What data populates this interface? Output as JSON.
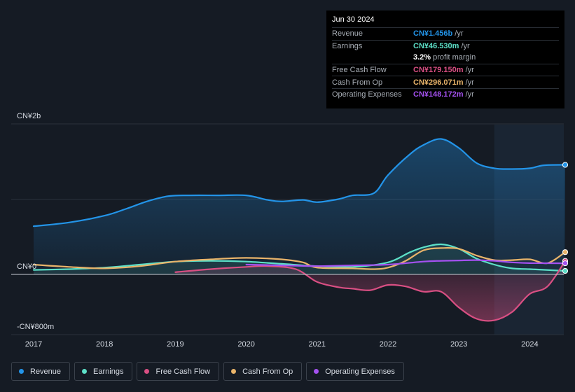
{
  "tooltip": {
    "date": "Jun 30 2024",
    "rows": [
      {
        "label": "Revenue",
        "value": "CN¥1.456b",
        "unit": "/yr",
        "color": "#2394e8"
      },
      {
        "label": "Earnings",
        "value": "CN¥46.530m",
        "unit": "/yr",
        "color": "#5de0c8"
      },
      {
        "label": "",
        "value": "3.2%",
        "unit": "profit margin",
        "color": "#ffffff"
      },
      {
        "label": "Free Cash Flow",
        "value": "CN¥179.150m",
        "unit": "/yr",
        "color": "#d94f83"
      },
      {
        "label": "Cash From Op",
        "value": "CN¥296.071m",
        "unit": "/yr",
        "color": "#e9b46a"
      },
      {
        "label": "Operating Expenses",
        "value": "CN¥148.172m",
        "unit": "/yr",
        "color": "#a451f0"
      }
    ]
  },
  "legend": [
    {
      "label": "Revenue",
      "color": "#2394e8"
    },
    {
      "label": "Earnings",
      "color": "#5de0c8"
    },
    {
      "label": "Free Cash Flow",
      "color": "#d94f83"
    },
    {
      "label": "Cash From Op",
      "color": "#e9b46a"
    },
    {
      "label": "Operating Expenses",
      "color": "#a451f0"
    }
  ],
  "chart_data": {
    "type": "area",
    "title": "",
    "xlabel": "",
    "ylabel": "",
    "unit": "CN¥m",
    "ylim": [
      -800,
      2000
    ],
    "y_tick_labels": [
      {
        "value": 2000,
        "label": "CN¥2b"
      },
      {
        "value": 0,
        "label": "CN¥0"
      },
      {
        "value": -800,
        "label": "-CN¥800m"
      }
    ],
    "x_ticks": [
      {
        "value": 2017,
        "label": "2017"
      },
      {
        "value": 2018,
        "label": "2018"
      },
      {
        "value": 2019,
        "label": "2019"
      },
      {
        "value": 2020,
        "label": "2020"
      },
      {
        "value": 2021,
        "label": "2021"
      },
      {
        "value": 2022,
        "label": "2022"
      },
      {
        "value": 2023,
        "label": "2023"
      },
      {
        "value": 2024,
        "label": "2024"
      }
    ],
    "xlim": [
      2016.7,
      2024.5
    ],
    "highlight_from": 2023.5,
    "series": [
      {
        "name": "Revenue",
        "color": "#2394e8",
        "fill": true,
        "points": [
          [
            2017.0,
            640
          ],
          [
            2017.5,
            690
          ],
          [
            2018.0,
            780
          ],
          [
            2018.3,
            870
          ],
          [
            2018.6,
            970
          ],
          [
            2018.9,
            1040
          ],
          [
            2019.2,
            1050
          ],
          [
            2019.6,
            1050
          ],
          [
            2020.0,
            1050
          ],
          [
            2020.3,
            990
          ],
          [
            2020.5,
            970
          ],
          [
            2020.8,
            990
          ],
          [
            2021.0,
            960
          ],
          [
            2021.3,
            1000
          ],
          [
            2021.5,
            1050
          ],
          [
            2021.8,
            1080
          ],
          [
            2022.0,
            1320
          ],
          [
            2022.3,
            1590
          ],
          [
            2022.5,
            1720
          ],
          [
            2022.75,
            1800
          ],
          [
            2023.0,
            1680
          ],
          [
            2023.25,
            1480
          ],
          [
            2023.5,
            1410
          ],
          [
            2023.75,
            1400
          ],
          [
            2024.0,
            1410
          ],
          [
            2024.2,
            1450
          ],
          [
            2024.5,
            1456
          ]
        ]
      },
      {
        "name": "Earnings",
        "color": "#5de0c8",
        "fill": true,
        "points": [
          [
            2017.0,
            60
          ],
          [
            2017.5,
            70
          ],
          [
            2018.0,
            90
          ],
          [
            2018.5,
            130
          ],
          [
            2019.0,
            170
          ],
          [
            2019.5,
            180
          ],
          [
            2020.0,
            170
          ],
          [
            2020.5,
            140
          ],
          [
            2021.0,
            110
          ],
          [
            2021.5,
            100
          ],
          [
            2022.0,
            160
          ],
          [
            2022.3,
            290
          ],
          [
            2022.5,
            360
          ],
          [
            2022.75,
            400
          ],
          [
            2023.0,
            340
          ],
          [
            2023.25,
            210
          ],
          [
            2023.5,
            130
          ],
          [
            2023.75,
            80
          ],
          [
            2024.0,
            70
          ],
          [
            2024.5,
            46.53
          ]
        ]
      },
      {
        "name": "Free Cash Flow",
        "color": "#d94f83",
        "fill": true,
        "points": [
          [
            2019.0,
            30
          ],
          [
            2019.5,
            70
          ],
          [
            2020.0,
            100
          ],
          [
            2020.3,
            110
          ],
          [
            2020.7,
            70
          ],
          [
            2021.0,
            -100
          ],
          [
            2021.3,
            -170
          ],
          [
            2021.5,
            -190
          ],
          [
            2021.75,
            -210
          ],
          [
            2022.0,
            -140
          ],
          [
            2022.25,
            -160
          ],
          [
            2022.5,
            -230
          ],
          [
            2022.75,
            -230
          ],
          [
            2023.0,
            -440
          ],
          [
            2023.25,
            -590
          ],
          [
            2023.5,
            -610
          ],
          [
            2023.75,
            -500
          ],
          [
            2024.0,
            -260
          ],
          [
            2024.25,
            -160
          ],
          [
            2024.5,
            179.15
          ]
        ]
      },
      {
        "name": "Cash From Op",
        "color": "#e9b46a",
        "fill": false,
        "points": [
          [
            2017.0,
            130
          ],
          [
            2017.5,
            100
          ],
          [
            2018.0,
            80
          ],
          [
            2018.5,
            110
          ],
          [
            2019.0,
            170
          ],
          [
            2019.5,
            200
          ],
          [
            2020.0,
            220
          ],
          [
            2020.5,
            200
          ],
          [
            2020.8,
            160
          ],
          [
            2021.0,
            90
          ],
          [
            2021.5,
            80
          ],
          [
            2021.8,
            70
          ],
          [
            2022.0,
            90
          ],
          [
            2022.25,
            180
          ],
          [
            2022.5,
            320
          ],
          [
            2022.75,
            350
          ],
          [
            2023.0,
            340
          ],
          [
            2023.25,
            250
          ],
          [
            2023.5,
            190
          ],
          [
            2023.75,
            190
          ],
          [
            2024.0,
            200
          ],
          [
            2024.25,
            150
          ],
          [
            2024.5,
            296.071
          ]
        ]
      },
      {
        "name": "Operating Expenses",
        "color": "#a451f0",
        "fill": false,
        "points": [
          [
            2020.0,
            130
          ],
          [
            2020.5,
            120
          ],
          [
            2021.0,
            110
          ],
          [
            2021.5,
            120
          ],
          [
            2022.0,
            130
          ],
          [
            2022.5,
            170
          ],
          [
            2022.75,
            180
          ],
          [
            2023.0,
            185
          ],
          [
            2023.25,
            190
          ],
          [
            2023.5,
            180
          ],
          [
            2023.75,
            160
          ],
          [
            2024.0,
            150
          ],
          [
            2024.5,
            148.172
          ]
        ]
      }
    ]
  }
}
